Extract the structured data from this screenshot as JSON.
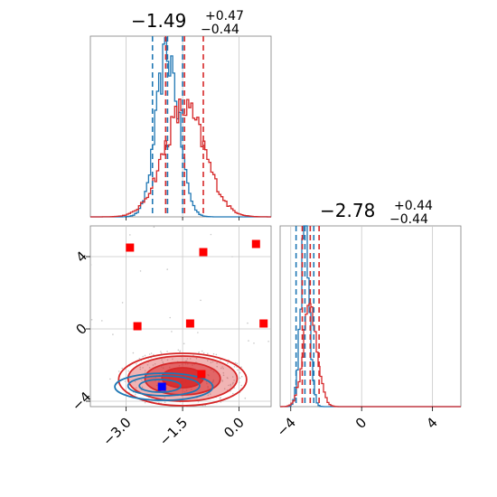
{
  "chart_data": {
    "type": "corner",
    "colors": {
      "blue": "#1f77b4",
      "red": "#d62728",
      "point_red": "#ff0000",
      "point_blue": "#0000ff",
      "scatter": "#c8c8c8"
    },
    "titles": {
      "p1": {
        "value": "−1.49",
        "plus": "+0.47",
        "minus": "−0.44"
      },
      "p2": {
        "value": "−2.78",
        "plus": "+0.44",
        "minus": "−0.44"
      }
    },
    "panels": {
      "hist1": {
        "xlim": [
          -3.95,
          0.85
        ],
        "quantiles": {
          "blue": [
            -2.3,
            -1.9,
            -1.5
          ],
          "red": [
            -1.95,
            -1.45,
            -0.95
          ]
        },
        "blue_hist": {
          "center": -1.9,
          "sigma": 0.3,
          "peak": 0.9
        },
        "red_hist": {
          "center": -1.45,
          "sigma": 0.55,
          "peak": 0.6
        }
      },
      "hist2": {
        "xlim": [
          -4.6,
          5.6
        ],
        "quantiles": {
          "blue": [
            -3.7,
            -3.2,
            -2.7
          ],
          "red": [
            -3.35,
            -2.9,
            -2.4
          ]
        },
        "blue_hist": {
          "center": -3.2,
          "sigma": 0.25,
          "peak": 0.95
        },
        "red_hist": {
          "center": -2.9,
          "sigma": 0.4,
          "peak": 0.55
        }
      },
      "scatter2d": {
        "xlim": [
          -3.95,
          0.85
        ],
        "ylim": [
          -4.3,
          5.7
        ],
        "red_points": [
          [
            -2.9,
            4.5
          ],
          [
            -0.95,
            4.25
          ],
          [
            0.45,
            4.7
          ],
          [
            -2.7,
            0.15
          ],
          [
            -1.3,
            0.3
          ],
          [
            0.65,
            0.3
          ],
          [
            -1.0,
            -2.5
          ]
        ],
        "blue_points": [
          [
            -2.05,
            -3.2
          ]
        ],
        "red_contours": [
          {
            "cx": -1.5,
            "cy": -2.7,
            "rx": 0.55,
            "ry": 0.55,
            "fill": 0.85
          },
          {
            "cx": -1.5,
            "cy": -2.75,
            "rx": 1.0,
            "ry": 0.9,
            "fill": 0.55
          },
          {
            "cx": -1.5,
            "cy": -2.75,
            "rx": 1.45,
            "ry": 1.25,
            "fill": 0.35
          },
          {
            "cx": -1.5,
            "cy": -2.8,
            "rx": 1.7,
            "ry": 1.45,
            "fill": 0.0
          }
        ],
        "blue_contours": [
          {
            "cx": -2.1,
            "cy": -3.15,
            "rx": 0.55,
            "ry": 0.35
          },
          {
            "cx": -2.0,
            "cy": -3.15,
            "rx": 0.95,
            "ry": 0.55
          },
          {
            "cx": -2.0,
            "cy": -3.2,
            "rx": 1.3,
            "ry": 0.75
          }
        ]
      }
    },
    "tick_labels": {
      "x1": [
        "−3.0",
        "−1.5",
        "0.0"
      ],
      "x2": [
        "−4",
        "0",
        "4"
      ],
      "y1": [
        "−4",
        "0",
        "4"
      ]
    }
  }
}
